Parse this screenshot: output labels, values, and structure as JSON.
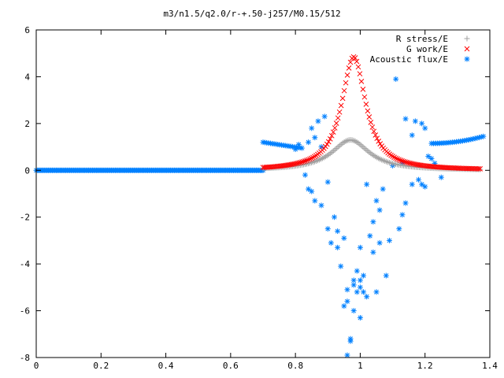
{
  "chart_data": {
    "type": "scatter",
    "title": "m3/n1.5/q2.0/r-+.50-j257/M0.15/512",
    "xlabel": "",
    "ylabel": "",
    "xlim": [
      0,
      1.4
    ],
    "ylim": [
      -8,
      6
    ],
    "x_ticks": [
      "0",
      "0.2",
      "0.4",
      "0.6",
      "0.8",
      "1",
      "1.2",
      "1.4"
    ],
    "y_ticks": [
      "6",
      "4",
      "2",
      "0",
      "-2",
      "-4",
      "-6",
      "-8"
    ],
    "grid": false,
    "legend_position": "top-right",
    "series": [
      {
        "name": "R stress/E",
        "marker": "+",
        "color": "#a0a0a0",
        "model": {
          "kind": "peak",
          "x0": 0.97,
          "amp": 1.3,
          "w": 0.07,
          "xmin": 0.7,
          "xmax": 1.37,
          "n": 140
        }
      },
      {
        "name": "G work/E",
        "marker": "x",
        "color": "#ff0000",
        "model": {
          "kind": "peak",
          "x0": 0.98,
          "amp": 4.85,
          "w": 0.045,
          "xmin": 0.7,
          "xmax": 1.37,
          "n": 140
        }
      },
      {
        "name": "Acoustic flux/E",
        "marker": "*",
        "color": "#0080ff",
        "zero_line": {
          "xmin": 0.0,
          "xmax": 0.7,
          "y": 0
        },
        "left_branch": {
          "xmin": 0.7,
          "xmax": 0.82,
          "y_start": 1.2,
          "y_end": 0.95
        },
        "right_branch": {
          "xmin": 1.22,
          "xmax": 1.38,
          "y_start": 1.15,
          "y_end": 1.45
        },
        "points": [
          [
            0.96,
            -7.9
          ],
          [
            0.97,
            -7.2
          ],
          [
            0.97,
            -7.3
          ],
          [
            0.95,
            -5.8
          ],
          [
            0.96,
            -5.6
          ],
          [
            0.99,
            -5.2
          ],
          [
            1.0,
            -5.0
          ],
          [
            0.98,
            -4.7
          ],
          [
            1.01,
            -4.5
          ],
          [
            0.99,
            -4.3
          ],
          [
            0.94,
            -4.1
          ],
          [
            0.93,
            -3.3
          ],
          [
            0.91,
            -3.1
          ],
          [
            0.9,
            -2.5
          ],
          [
            0.92,
            -2.0
          ],
          [
            0.88,
            -1.5
          ],
          [
            0.86,
            -1.3
          ],
          [
            0.85,
            -0.9
          ],
          [
            0.84,
            -0.8
          ],
          [
            0.83,
            -0.2
          ],
          [
            0.9,
            -0.5
          ],
          [
            1.0,
            -3.3
          ],
          [
            1.03,
            -2.8
          ],
          [
            1.04,
            -2.2
          ],
          [
            1.06,
            -1.7
          ],
          [
            1.05,
            -1.3
          ],
          [
            1.07,
            -0.8
          ],
          [
            1.02,
            -0.6
          ],
          [
            1.08,
            -4.5
          ],
          [
            1.05,
            -5.2
          ],
          [
            1.02,
            -5.4
          ],
          [
            1.01,
            -5.2
          ],
          [
            0.96,
            -5.1
          ],
          [
            0.98,
            -4.9
          ],
          [
            1.0,
            -4.7
          ],
          [
            1.04,
            -3.5
          ],
          [
            1.09,
            -3.0
          ],
          [
            1.12,
            -2.5
          ],
          [
            1.13,
            -1.9
          ],
          [
            1.14,
            -1.4
          ],
          [
            1.16,
            -0.6
          ],
          [
            1.18,
            -0.4
          ],
          [
            1.11,
            3.9
          ],
          [
            1.14,
            2.2
          ],
          [
            1.17,
            2.1
          ],
          [
            1.19,
            2.0
          ],
          [
            1.2,
            1.8
          ],
          [
            1.16,
            1.5
          ],
          [
            1.13,
            0.3
          ],
          [
            1.1,
            0.2
          ],
          [
            0.89,
            2.3
          ],
          [
            0.87,
            2.1
          ],
          [
            0.85,
            1.8
          ],
          [
            0.86,
            1.4
          ],
          [
            0.84,
            1.2
          ],
          [
            0.83,
            0.4
          ],
          [
            0.88,
            1.0
          ],
          [
            0.81,
            1.1
          ],
          [
            0.8,
            0.9
          ],
          [
            1.21,
            0.6
          ],
          [
            1.22,
            0.5
          ],
          [
            1.23,
            0.3
          ],
          [
            1.19,
            -0.6
          ],
          [
            1.2,
            -0.7
          ],
          [
            1.25,
            -0.3
          ],
          [
            0.93,
            -2.6
          ],
          [
            0.95,
            -2.9
          ],
          [
            1.06,
            -3.1
          ],
          [
            0.98,
            -6.0
          ],
          [
            1.0,
            -6.3
          ]
        ]
      }
    ]
  }
}
